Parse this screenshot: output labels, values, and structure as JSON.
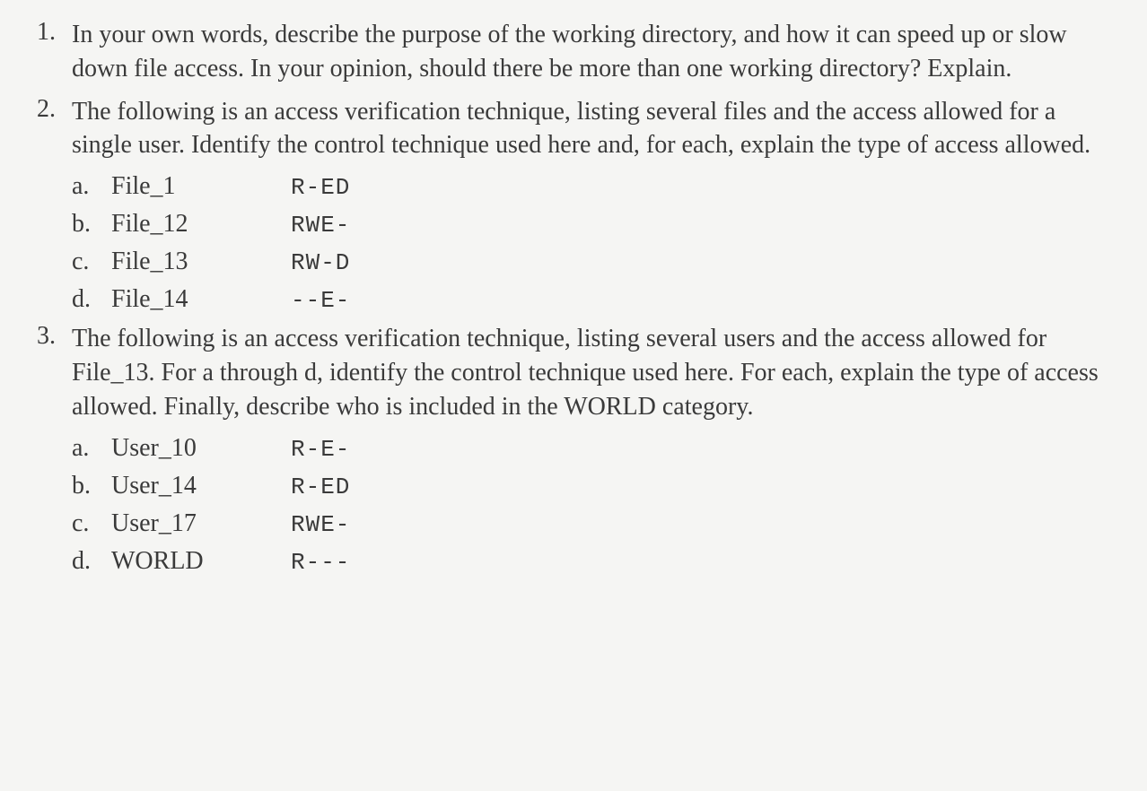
{
  "questions": [
    {
      "number": "1.",
      "text": "In your own words, describe the purpose of the working directory, and how it can speed up or slow down file access. In your opinion, should there be more than one working directory? Explain.",
      "subitems": []
    },
    {
      "number": "2.",
      "text": "The following is an access verification technique, listing several files and the access allowed for a single user. Identify the control technique used here and, for each, explain the type of access allowed.",
      "subitems": [
        {
          "letter": "a.",
          "name": "File_1",
          "code": "R-ED"
        },
        {
          "letter": "b.",
          "name": "File_12",
          "code": "RWE-"
        },
        {
          "letter": "c.",
          "name": "File_13",
          "code": "RW-D"
        },
        {
          "letter": "d.",
          "name": "File_14",
          "code": "--E-"
        }
      ]
    },
    {
      "number": "3.",
      "text": "The following is an access verification technique, listing several users and the access allowed for File_13. For a through d, identify the control technique used here. For each, explain the type of access allowed. Finally, describe who is included in the WORLD category.",
      "subitems": [
        {
          "letter": "a.",
          "name": "User_10",
          "code": "R-E-"
        },
        {
          "letter": "b.",
          "name": "User_14",
          "code": "R-ED"
        },
        {
          "letter": "c.",
          "name": "User_17",
          "code": "RWE-"
        },
        {
          "letter": "d.",
          "name": "WORLD",
          "code": "R---"
        }
      ]
    }
  ]
}
